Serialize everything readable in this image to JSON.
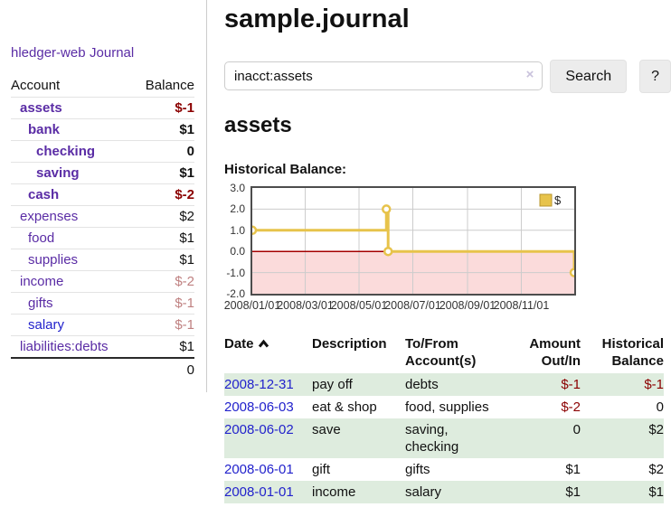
{
  "app": {
    "brand": "hledger-web"
  },
  "colors": {
    "accent_purple": "#5a2ca5",
    "link_blue": "#2222cc",
    "negative": "#8b0000",
    "negative_soft": "#bf8080",
    "row_stripe_green": "#deecde",
    "chart_line_gold": "#e7c34b"
  },
  "sidebar": {
    "journal_link": "Journal",
    "accounts": {
      "header_account": "Account",
      "header_balance": "Balance",
      "rows": [
        {
          "account": "assets",
          "depth": 0,
          "bold": true,
          "balance": "$-1",
          "balance_color": "neg"
        },
        {
          "account": "bank",
          "depth": 1,
          "bold": true,
          "balance": "$1",
          "balance_color": ""
        },
        {
          "account": "checking",
          "depth": 2,
          "bold": true,
          "balance": "0",
          "balance_color": ""
        },
        {
          "account": "saving",
          "depth": 2,
          "bold": true,
          "balance": "$1",
          "balance_color": ""
        },
        {
          "account": "cash",
          "depth": 1,
          "bold": true,
          "balance": "$-2",
          "balance_color": "neg"
        },
        {
          "account": "expenses",
          "depth": 0,
          "bold": false,
          "balance": "$2",
          "balance_color": ""
        },
        {
          "account": "food",
          "depth": 1,
          "bold": false,
          "balance": "$1",
          "balance_color": ""
        },
        {
          "account": "supplies",
          "depth": 1,
          "bold": false,
          "balance": "$1",
          "balance_color": ""
        },
        {
          "account": "income",
          "depth": 0,
          "bold": false,
          "balance": "$-2",
          "balance_color": "soft"
        },
        {
          "account": "gifts",
          "depth": 1,
          "bold": false,
          "balance": "$-1",
          "balance_color": "soft"
        },
        {
          "account": "salary",
          "depth": 1,
          "bold": false,
          "blue": true,
          "balance": "$-1",
          "balance_color": "soft"
        },
        {
          "account": "liabilities:debts",
          "depth": 0,
          "bold": false,
          "balance": "$1",
          "balance_color": ""
        }
      ],
      "total": "0"
    }
  },
  "main": {
    "title": "sample.journal",
    "search": {
      "value": "inacct:assets",
      "clear_icon": "×",
      "button_label": "Search",
      "help_label": "?"
    },
    "account_heading": "assets"
  },
  "chart_data": {
    "type": "line",
    "title": "Historical Balance:",
    "step": true,
    "x_range": [
      "2008-01-01",
      "2008-12-31"
    ],
    "ylim": [
      -2,
      3
    ],
    "y_ticks": [
      3.0,
      2.0,
      1.0,
      0.0,
      -1.0,
      -2.0
    ],
    "x_ticks": [
      "2008/01/01",
      "2008/03/01",
      "2008/05/01",
      "2008/07/01",
      "2008/09/01",
      "2008/11/01"
    ],
    "series": [
      {
        "name": "$",
        "color": "#e7c34b",
        "marker": "open-circle",
        "points": [
          [
            "2008-01-01",
            1
          ],
          [
            "2008-06-01",
            2
          ],
          [
            "2008-06-03",
            0
          ],
          [
            "2008-12-31",
            -1
          ]
        ]
      }
    ],
    "legend": {
      "label": "$",
      "position": "top-right"
    },
    "grid": true,
    "grid_color": "#cccccc",
    "zero_line_color": "#a40000",
    "negative_region_color": "#fbdbdb",
    "border_color": "#4d4d4d"
  },
  "register": {
    "headers": [
      {
        "lines": [
          "Date"
        ],
        "align": "left",
        "sort": "asc"
      },
      {
        "lines": [
          "Description"
        ],
        "align": "left"
      },
      {
        "lines": [
          "To/From",
          "Account(s)"
        ],
        "align": "left"
      },
      {
        "lines": [
          "Amount",
          "Out/In"
        ],
        "align": "right"
      },
      {
        "lines": [
          "Historical",
          "Balance"
        ],
        "align": "right"
      }
    ],
    "rows": [
      {
        "date": "2008-12-31",
        "description": "pay off",
        "accounts": "debts",
        "amount": "$-1",
        "amount_color": "neg",
        "balance": "$-1",
        "balance_color": "neg"
      },
      {
        "date": "2008-06-03",
        "description": "eat & shop",
        "accounts": "food, supplies",
        "amount": "$-2",
        "amount_color": "neg",
        "balance": "0",
        "balance_color": ""
      },
      {
        "date": "2008-06-02",
        "description": "save",
        "accounts": "saving, checking",
        "amount": "0",
        "amount_color": "",
        "balance": "$2",
        "balance_color": ""
      },
      {
        "date": "2008-06-01",
        "description": "gift",
        "accounts": "gifts",
        "amount": "$1",
        "amount_color": "",
        "balance": "$2",
        "balance_color": ""
      },
      {
        "date": "2008-01-01",
        "description": "income",
        "accounts": "salary",
        "amount": "$1",
        "amount_color": "",
        "balance": "$1",
        "balance_color": ""
      }
    ]
  }
}
